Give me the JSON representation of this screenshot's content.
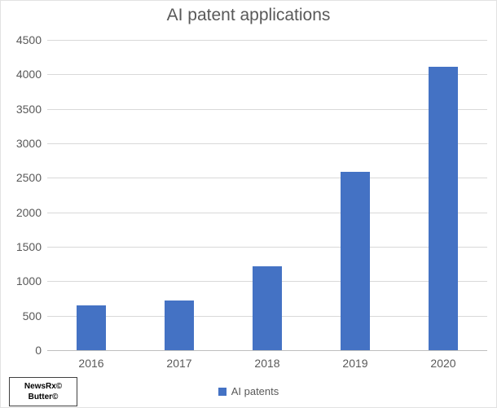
{
  "title": "AI patent applications",
  "legend": {
    "label": "AI patents",
    "swatch_color": "#4472c4"
  },
  "watermark": {
    "line1": "NewsRx©",
    "line2": "Butter©"
  },
  "colors": {
    "bar": "#4472c4",
    "gridline": "#d9d9d9",
    "axis_line": "#bfbfbf",
    "text": "#595959"
  },
  "chart_data": {
    "type": "bar",
    "title": "AI patent applications",
    "categories": [
      "2016",
      "2017",
      "2018",
      "2019",
      "2020"
    ],
    "series": [
      {
        "name": "AI patents",
        "values": [
          650,
          715,
          1220,
          2585,
          4110
        ]
      }
    ],
    "xlabel": "",
    "ylabel": "",
    "ylim": [
      0,
      4500
    ],
    "ytick_step": 500,
    "ytick_labels": [
      "4500",
      "4000",
      "3500",
      "3000",
      "2500",
      "2000",
      "1500",
      "1000",
      "500",
      "0"
    ],
    "grid": true,
    "legend_position": "bottom"
  }
}
